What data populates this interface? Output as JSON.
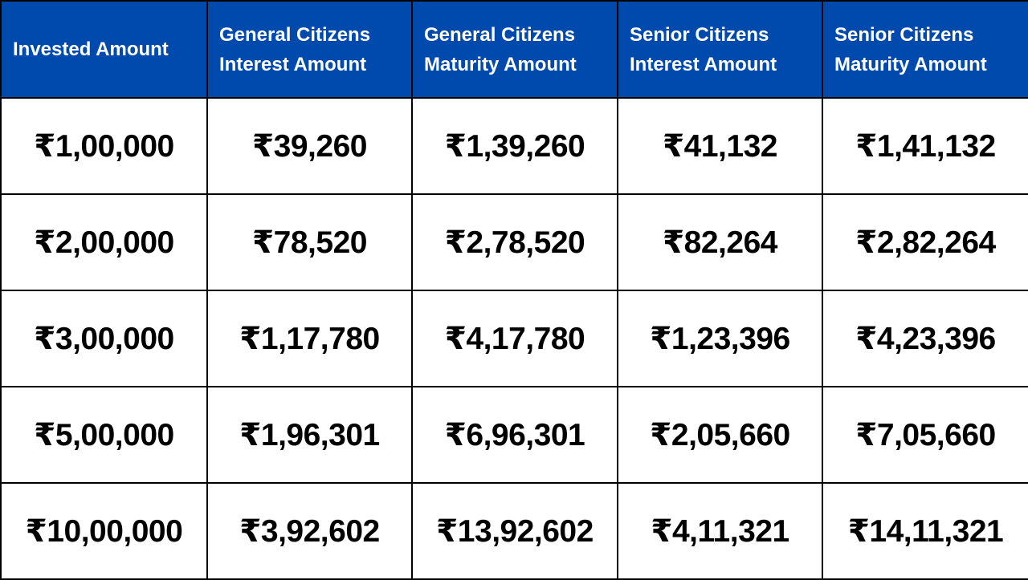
{
  "table": {
    "header_color": "#004aad",
    "headers": [
      {
        "line1": "Invested Amount",
        "line2": ""
      },
      {
        "line1": "General Citizens",
        "line2": "Interest Amount"
      },
      {
        "line1": "General Citizens",
        "line2": "Maturity Amount"
      },
      {
        "line1": "Senior Citizens",
        "line2": "Interest Amount"
      },
      {
        "line1": "Senior Citizens",
        "line2": "Maturity Amount"
      }
    ],
    "rows": [
      [
        "₹1,00,000",
        "₹39,260",
        "₹1,39,260",
        "₹41,132",
        "₹1,41,132"
      ],
      [
        "₹2,00,000",
        "₹78,520",
        "₹2,78,520",
        "₹82,264",
        "₹2,82,264"
      ],
      [
        "₹3,00,000",
        "₹1,17,780",
        "₹4,17,780",
        "₹1,23,396",
        "₹4,23,396"
      ],
      [
        "₹5,00,000",
        "₹1,96,301",
        "₹6,96,301",
        "₹2,05,660",
        "₹7,05,660"
      ],
      [
        "₹10,00,000",
        "₹3,92,602",
        "₹13,92,602",
        "₹4,11,321",
        "₹14,11,321"
      ]
    ]
  }
}
